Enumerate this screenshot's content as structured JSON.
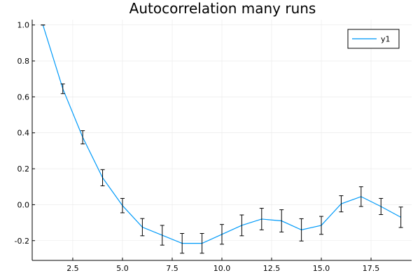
{
  "chart_data": {
    "type": "line",
    "title": "Autocorrelation many runs",
    "xlabel": "",
    "ylabel": "",
    "xlim": [
      0.46,
      19.54
    ],
    "ylim": [
      -0.31,
      1.03
    ],
    "xticks": [
      2.5,
      5.0,
      7.5,
      10.0,
      12.5,
      15.0,
      17.5
    ],
    "xtick_labels": [
      "2.5",
      "5.0",
      "7.5",
      "10.0",
      "12.5",
      "15.0",
      "17.5"
    ],
    "yticks": [
      -0.2,
      0.0,
      0.2,
      0.4,
      0.6,
      0.8,
      1.0
    ],
    "ytick_labels": [
      "-0.2",
      "0.0",
      "0.2",
      "0.4",
      "0.6",
      "0.8",
      "1.0"
    ],
    "grid": true,
    "legend_position": "top-right",
    "series": [
      {
        "name": "y1",
        "color": "#009af9",
        "errorbar_color": "#000000",
        "x": [
          1,
          2,
          3,
          4,
          5,
          6,
          7,
          8,
          9,
          10,
          11,
          12,
          13,
          14,
          15,
          16,
          17,
          18,
          19
        ],
        "y": [
          1.0,
          0.645,
          0.375,
          0.15,
          -0.005,
          -0.125,
          -0.17,
          -0.215,
          -0.215,
          -0.165,
          -0.115,
          -0.08,
          -0.09,
          -0.14,
          -0.115,
          0.005,
          0.045,
          -0.01,
          -0.07
        ],
        "err": [
          0.0,
          0.027,
          0.037,
          0.045,
          0.04,
          0.048,
          0.055,
          0.055,
          0.055,
          0.055,
          0.058,
          0.06,
          0.062,
          0.062,
          0.05,
          0.045,
          0.055,
          0.045,
          0.057
        ]
      }
    ]
  }
}
